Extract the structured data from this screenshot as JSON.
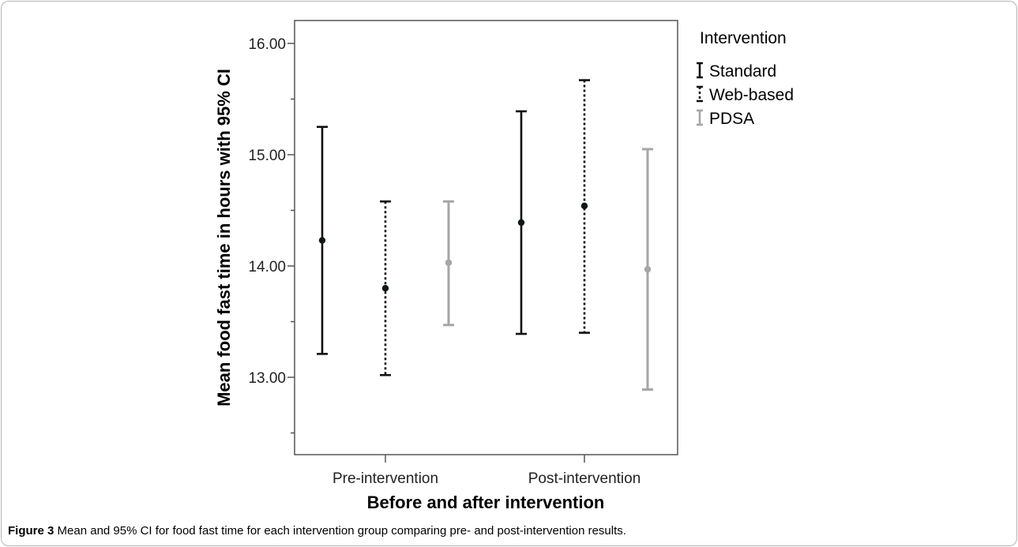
{
  "caption": {
    "label": "Figure 3",
    "text": "Mean and 95% CI for food fast time for each intervention group comparing pre- and post-intervention results."
  },
  "chart_data": {
    "type": "errorbar",
    "ylabel": "Mean food fast time in hours with 95% CI",
    "xlabel": "Before and after intervention",
    "ylim": [
      12.45,
      16.2
    ],
    "yticks": [
      {
        "value": 12.5,
        "label": ""
      },
      {
        "value": 13.0,
        "label": "13.00"
      },
      {
        "value": 13.5,
        "label": ""
      },
      {
        "value": 14.0,
        "label": "14.00"
      },
      {
        "value": 14.5,
        "label": ""
      },
      {
        "value": 15.0,
        "label": "15.00"
      },
      {
        "value": 15.5,
        "label": ""
      },
      {
        "value": 16.0,
        "label": "16.00"
      }
    ],
    "categories": [
      "Pre-intervention",
      "Post-intervention"
    ],
    "legend": {
      "title": "Intervention",
      "position": "right"
    },
    "series": [
      {
        "name": "Standard",
        "color": "#111111",
        "style": "solid",
        "mean": [
          14.23,
          14.39
        ],
        "lower": [
          13.21,
          13.39
        ],
        "upper": [
          15.25,
          15.39
        ]
      },
      {
        "name": "Web-based",
        "color": "#111111",
        "style": "dotted",
        "mean": [
          13.8,
          14.54
        ],
        "lower": [
          13.02,
          13.4
        ],
        "upper": [
          14.58,
          15.67
        ]
      },
      {
        "name": "PDSA",
        "color": "#a6a6a6",
        "style": "solid",
        "mean": [
          14.03,
          13.97
        ],
        "lower": [
          13.47,
          12.89
        ],
        "upper": [
          14.58,
          15.05
        ]
      }
    ]
  }
}
